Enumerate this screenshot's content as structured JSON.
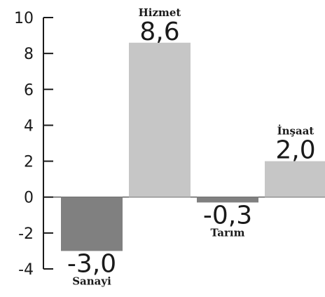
{
  "chart_data": {
    "type": "bar",
    "categories": [
      "Sanayi",
      "Hizmet",
      "Tarım",
      "İnşaat"
    ],
    "values": [
      -3.0,
      8.6,
      -0.3,
      2.0
    ],
    "value_labels": [
      "-3,0",
      "8,6",
      "-0,3",
      "2,0"
    ],
    "colors": [
      "#808080",
      "#c6c6c6",
      "#808080",
      "#c6c6c6"
    ],
    "ylim": [
      -4,
      10
    ],
    "yticks": [
      10,
      8,
      6,
      4,
      2,
      0,
      -2,
      -4
    ],
    "title": "",
    "xlabel": "",
    "ylabel": "",
    "grid": false
  }
}
